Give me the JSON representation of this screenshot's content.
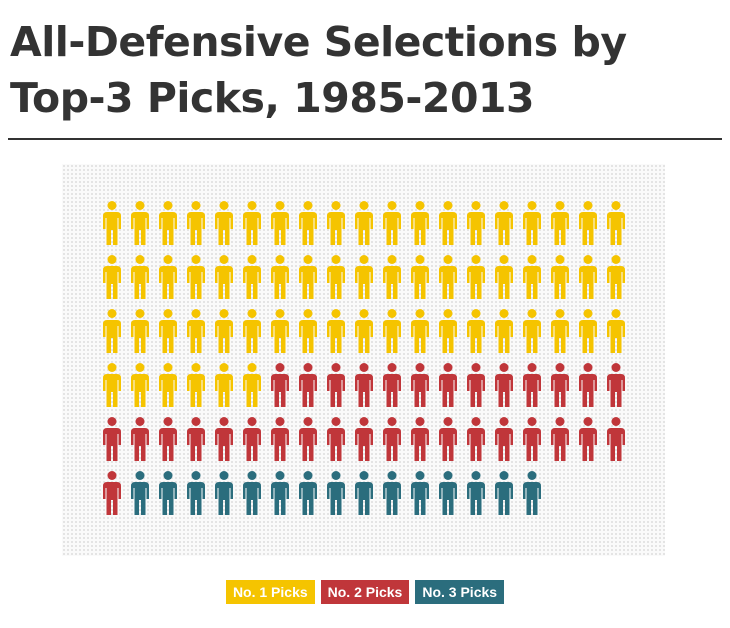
{
  "title": "All-Defensive Selections by Top-3 Picks, 1985-2013",
  "chart_data": {
    "type": "pictograph",
    "title": "All-Defensive Selections by Top-3 Picks, 1985-2013",
    "icons_per_row": 19,
    "series": [
      {
        "name": "No. 1 Picks",
        "value": 63,
        "color": "#f5c400"
      },
      {
        "name": "No. 2 Picks",
        "value": 33,
        "color": "#c0363a"
      },
      {
        "name": "No. 3 Picks",
        "value": 15,
        "color": "#2b6d7d"
      }
    ],
    "legend_position": "bottom-center",
    "grid": false
  }
}
